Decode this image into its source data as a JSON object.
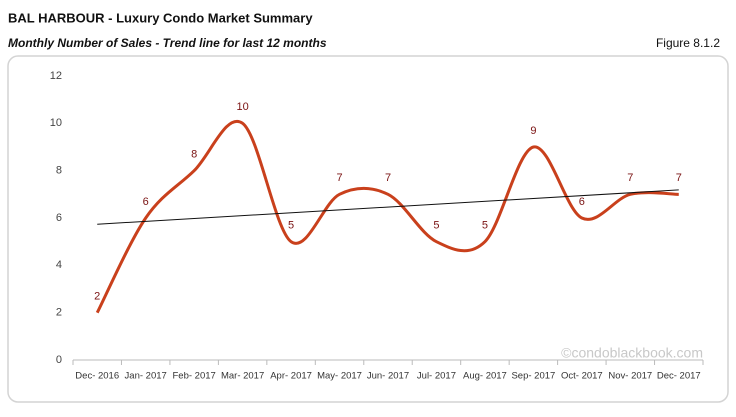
{
  "chart_data": {
    "type": "line",
    "title": "BAL HARBOUR - Luxury Condo Market Summary",
    "subtitle": "Monthly Number of Sales - Trend line for last 12 months",
    "figure_label": "Figure 8.1.2",
    "watermark": "©condoblackbook.com",
    "categories": [
      "Dec- 2016",
      "Jan- 2017",
      "Feb- 2017",
      "Mar- 2017",
      "Apr- 2017",
      "May- 2017",
      "Jun- 2017",
      "Jul- 2017",
      "Aug- 2017",
      "Sep- 2017",
      "Oct- 2017",
      "Nov- 2017",
      "Dec- 2017"
    ],
    "series": [
      {
        "name": "Number of Sales",
        "color": "#c9401c",
        "values": [
          2,
          6,
          8,
          10,
          5,
          7,
          7,
          5,
          5,
          9,
          6,
          7,
          7
        ]
      }
    ],
    "trendline": true,
    "ylim": [
      0,
      12
    ],
    "yticks": [
      0,
      2,
      4,
      6,
      8,
      10,
      12
    ],
    "grid": false
  }
}
